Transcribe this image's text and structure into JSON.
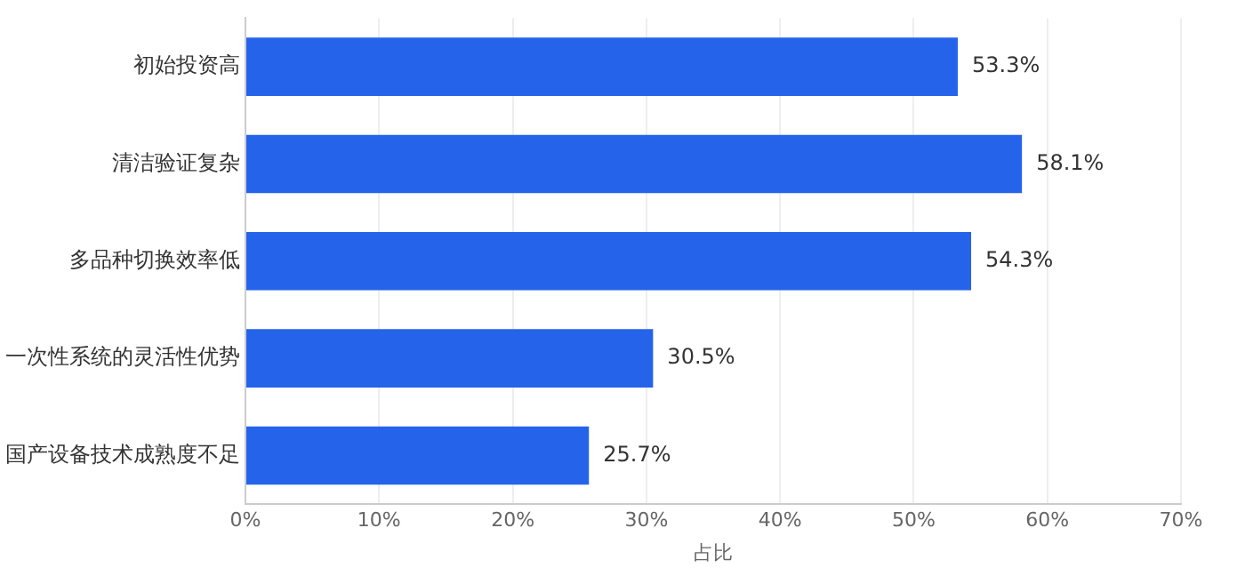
{
  "chart_data": {
    "type": "bar",
    "orientation": "horizontal",
    "categories": [
      "初始投资高",
      "清洁验证复杂",
      "多品种切换效率低",
      "一次性系统的灵活性优势",
      "国产设备技术成熟度不足"
    ],
    "values": [
      53.3,
      58.1,
      54.3,
      30.5,
      25.7
    ],
    "value_labels": [
      "53.3%",
      "58.1%",
      "54.3%",
      "30.5%",
      "25.7%"
    ],
    "color": "#2563eb",
    "xlabel": "占比",
    "xlim": [
      0,
      70
    ],
    "xticks": [
      {
        "value": 0,
        "label": "0%"
      },
      {
        "value": 10,
        "label": "10%"
      },
      {
        "value": 20,
        "label": "20%"
      },
      {
        "value": 30,
        "label": "30%"
      },
      {
        "value": 40,
        "label": "40%"
      },
      {
        "value": 50,
        "label": "50%"
      },
      {
        "value": 60,
        "label": "60%"
      },
      {
        "value": 70,
        "label": "70%"
      }
    ],
    "grid": "x",
    "legend": false
  }
}
